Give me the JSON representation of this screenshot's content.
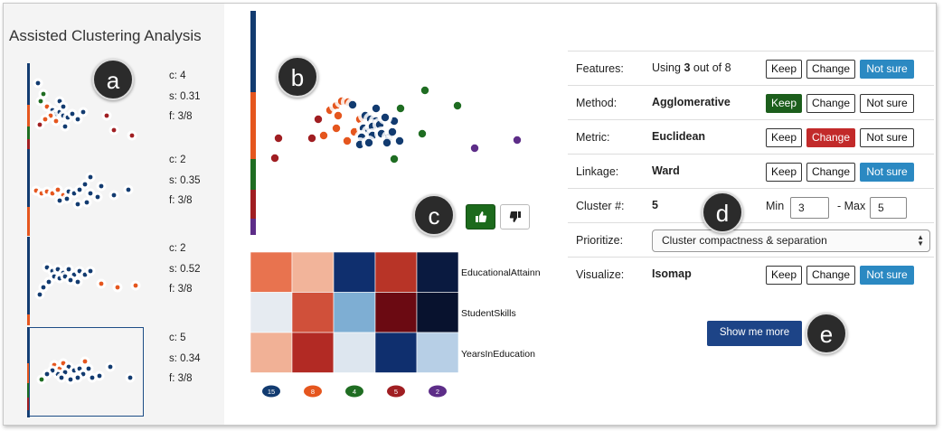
{
  "app_title": "Assisted Clustering Analysis",
  "annotations": [
    "a",
    "b",
    "c",
    "d",
    "e"
  ],
  "colors": {
    "blue": "#123b70",
    "orange": "#e5561e",
    "green": "#1f6d22",
    "red": "#a01e22",
    "purple": "#5d2d88",
    "accent_blue": "#1d4487",
    "keep_active": "#1c5e1c",
    "change_active": "#c22a2a",
    "notsure_active": "#2b89c2"
  },
  "thumbnails": [
    {
      "c": "c: 4",
      "s": "s: 0.31",
      "f": "f: 3/8"
    },
    {
      "c": "c: 2",
      "s": "s: 0.35",
      "f": "f: 3/8"
    },
    {
      "c": "c: 2",
      "s": "s: 0.52",
      "f": "f: 3/8"
    },
    {
      "c": "c: 5",
      "s": "s: 0.34",
      "f": "f: 3/8"
    }
  ],
  "feedback": {
    "up_icon": "thumbs-up-icon",
    "down_icon": "thumbs-down-icon"
  },
  "heatmap": {
    "rows": [
      "EducationalAttainn",
      "StudentSkills",
      "YearsInEducation"
    ],
    "cells": [
      [
        "#e8734f",
        "#f2b49a",
        "#0f2f6e",
        "#b83427",
        "#0a1a40"
      ],
      [
        "#e6ebf1",
        "#d0503a",
        "#7eaed3",
        "#6b0a12",
        "#08122e"
      ],
      [
        "#f1b196",
        "#b22a24",
        "#dde6ef",
        "#0f2f6e",
        "#b7cfe6"
      ]
    ],
    "cluster_counts": [
      "15",
      "8",
      "4",
      "5",
      "2"
    ]
  },
  "controls": {
    "features": {
      "label": "Features:",
      "prefix": "Using ",
      "count": "3",
      "suffix": " out of 8"
    },
    "method": {
      "label": "Method:",
      "value": "Agglomerative"
    },
    "metric": {
      "label": "Metric:",
      "value": "Euclidean"
    },
    "linkage": {
      "label": "Linkage:",
      "value": "Ward"
    },
    "cluster_num": {
      "label": "Cluster #:",
      "value": "5",
      "min_label": "Min",
      "min_value": "3",
      "max_label": "- Max",
      "max_value": "5"
    },
    "prioritize": {
      "label": "Prioritize:",
      "value": "Cluster compactness & separation"
    },
    "visualize": {
      "label": "Visualize:",
      "value": "Isomap"
    },
    "keep": "Keep",
    "change": "Change",
    "not_sure": "Not sure"
  },
  "show_more": "Show me more"
}
